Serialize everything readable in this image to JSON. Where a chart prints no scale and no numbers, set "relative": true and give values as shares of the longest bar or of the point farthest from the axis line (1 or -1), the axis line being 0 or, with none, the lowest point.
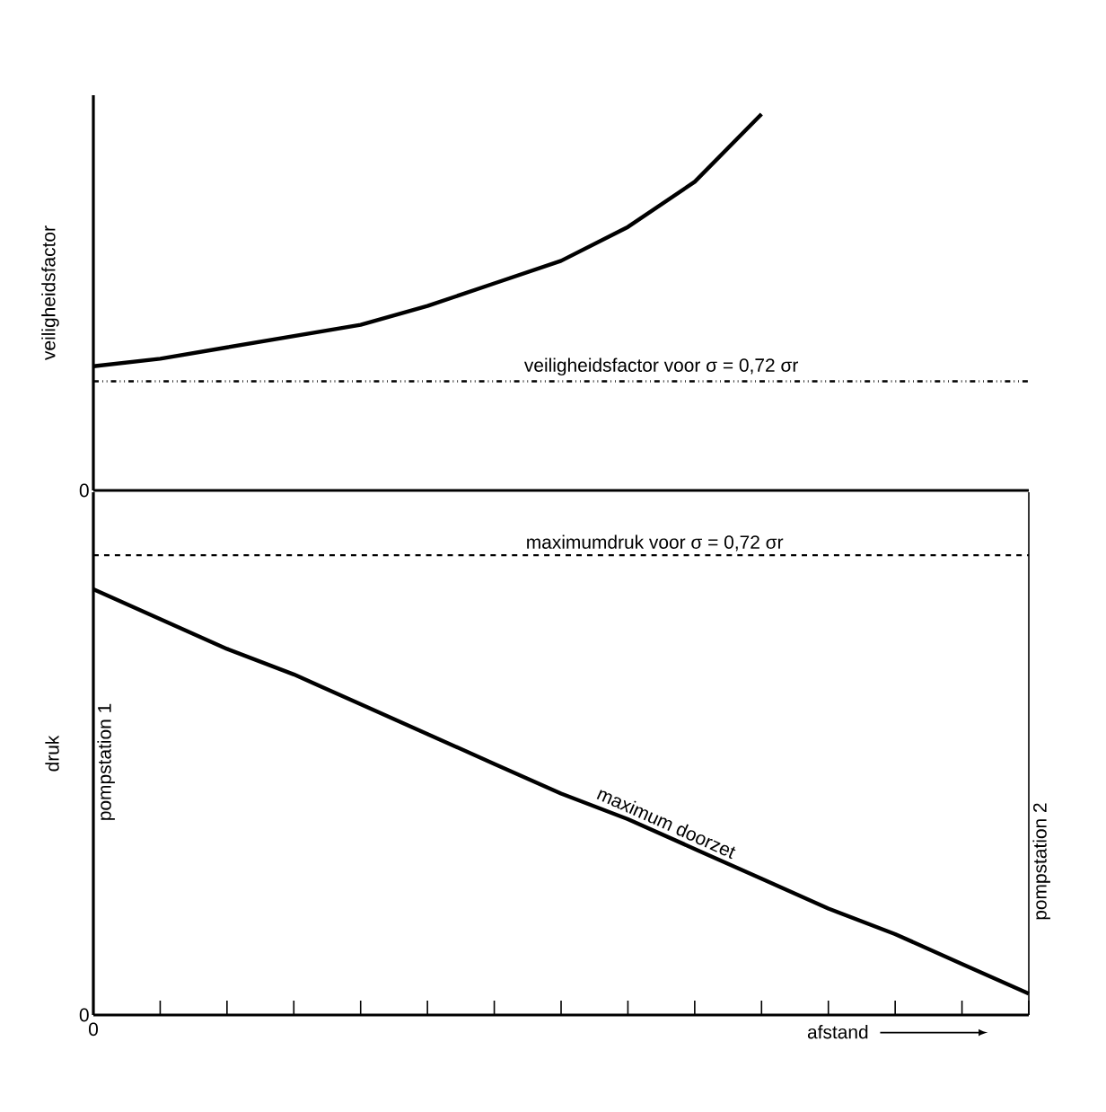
{
  "chart_data": [
    {
      "type": "line",
      "ylabel": "veiligheidsfactor",
      "categories": [
        null,
        null,
        null,
        null,
        null,
        null,
        null,
        null,
        null,
        null,
        null,
        null,
        null,
        null,
        null
      ],
      "relative": true,
      "series": [
        {
          "color": "#000000",
          "values": [
            0.33,
            0.35,
            0.38,
            0.41,
            0.44,
            0.49,
            0.55,
            0.61,
            0.7,
            0.82,
            1,
            null,
            null,
            null,
            null
          ]
        },
        {
          "name": "veiligheidsfactor voor σ = 0,72 σr",
          "color": "#000000",
          "line_style": "dashdot",
          "values": [
            0.29,
            0.29,
            0.29,
            0.29,
            0.29,
            0.29,
            0.29,
            0.29,
            0.29,
            0.29,
            0.29,
            0.29,
            0.29,
            0.29,
            0.29
          ]
        }
      ],
      "annotations": [
        "0"
      ]
    },
    {
      "type": "line",
      "ylabel": "druk",
      "xlabel": "afstand",
      "categories": [
        null,
        null,
        null,
        null,
        null,
        null,
        null,
        null,
        null,
        null,
        null,
        null,
        null,
        null,
        null
      ],
      "relative": true,
      "series": [
        {
          "name": "maximum doorzet",
          "color": "#000000",
          "values": [
            1,
            0.93,
            0.86,
            0.8,
            0.73,
            0.66,
            0.59,
            0.52,
            0.46,
            0.39,
            0.32,
            0.25,
            0.19,
            0.12,
            0.05
          ]
        }
      ],
      "ref_lines": [
        {
          "axis": "y",
          "value": 1.08,
          "line_style": "dashed",
          "color": "#000000"
        }
      ],
      "annotations": [
        "0",
        "0",
        "maximumdruk voor σ = 0,72 σr",
        "pompstation 1",
        "pompstation 2"
      ]
    }
  ]
}
